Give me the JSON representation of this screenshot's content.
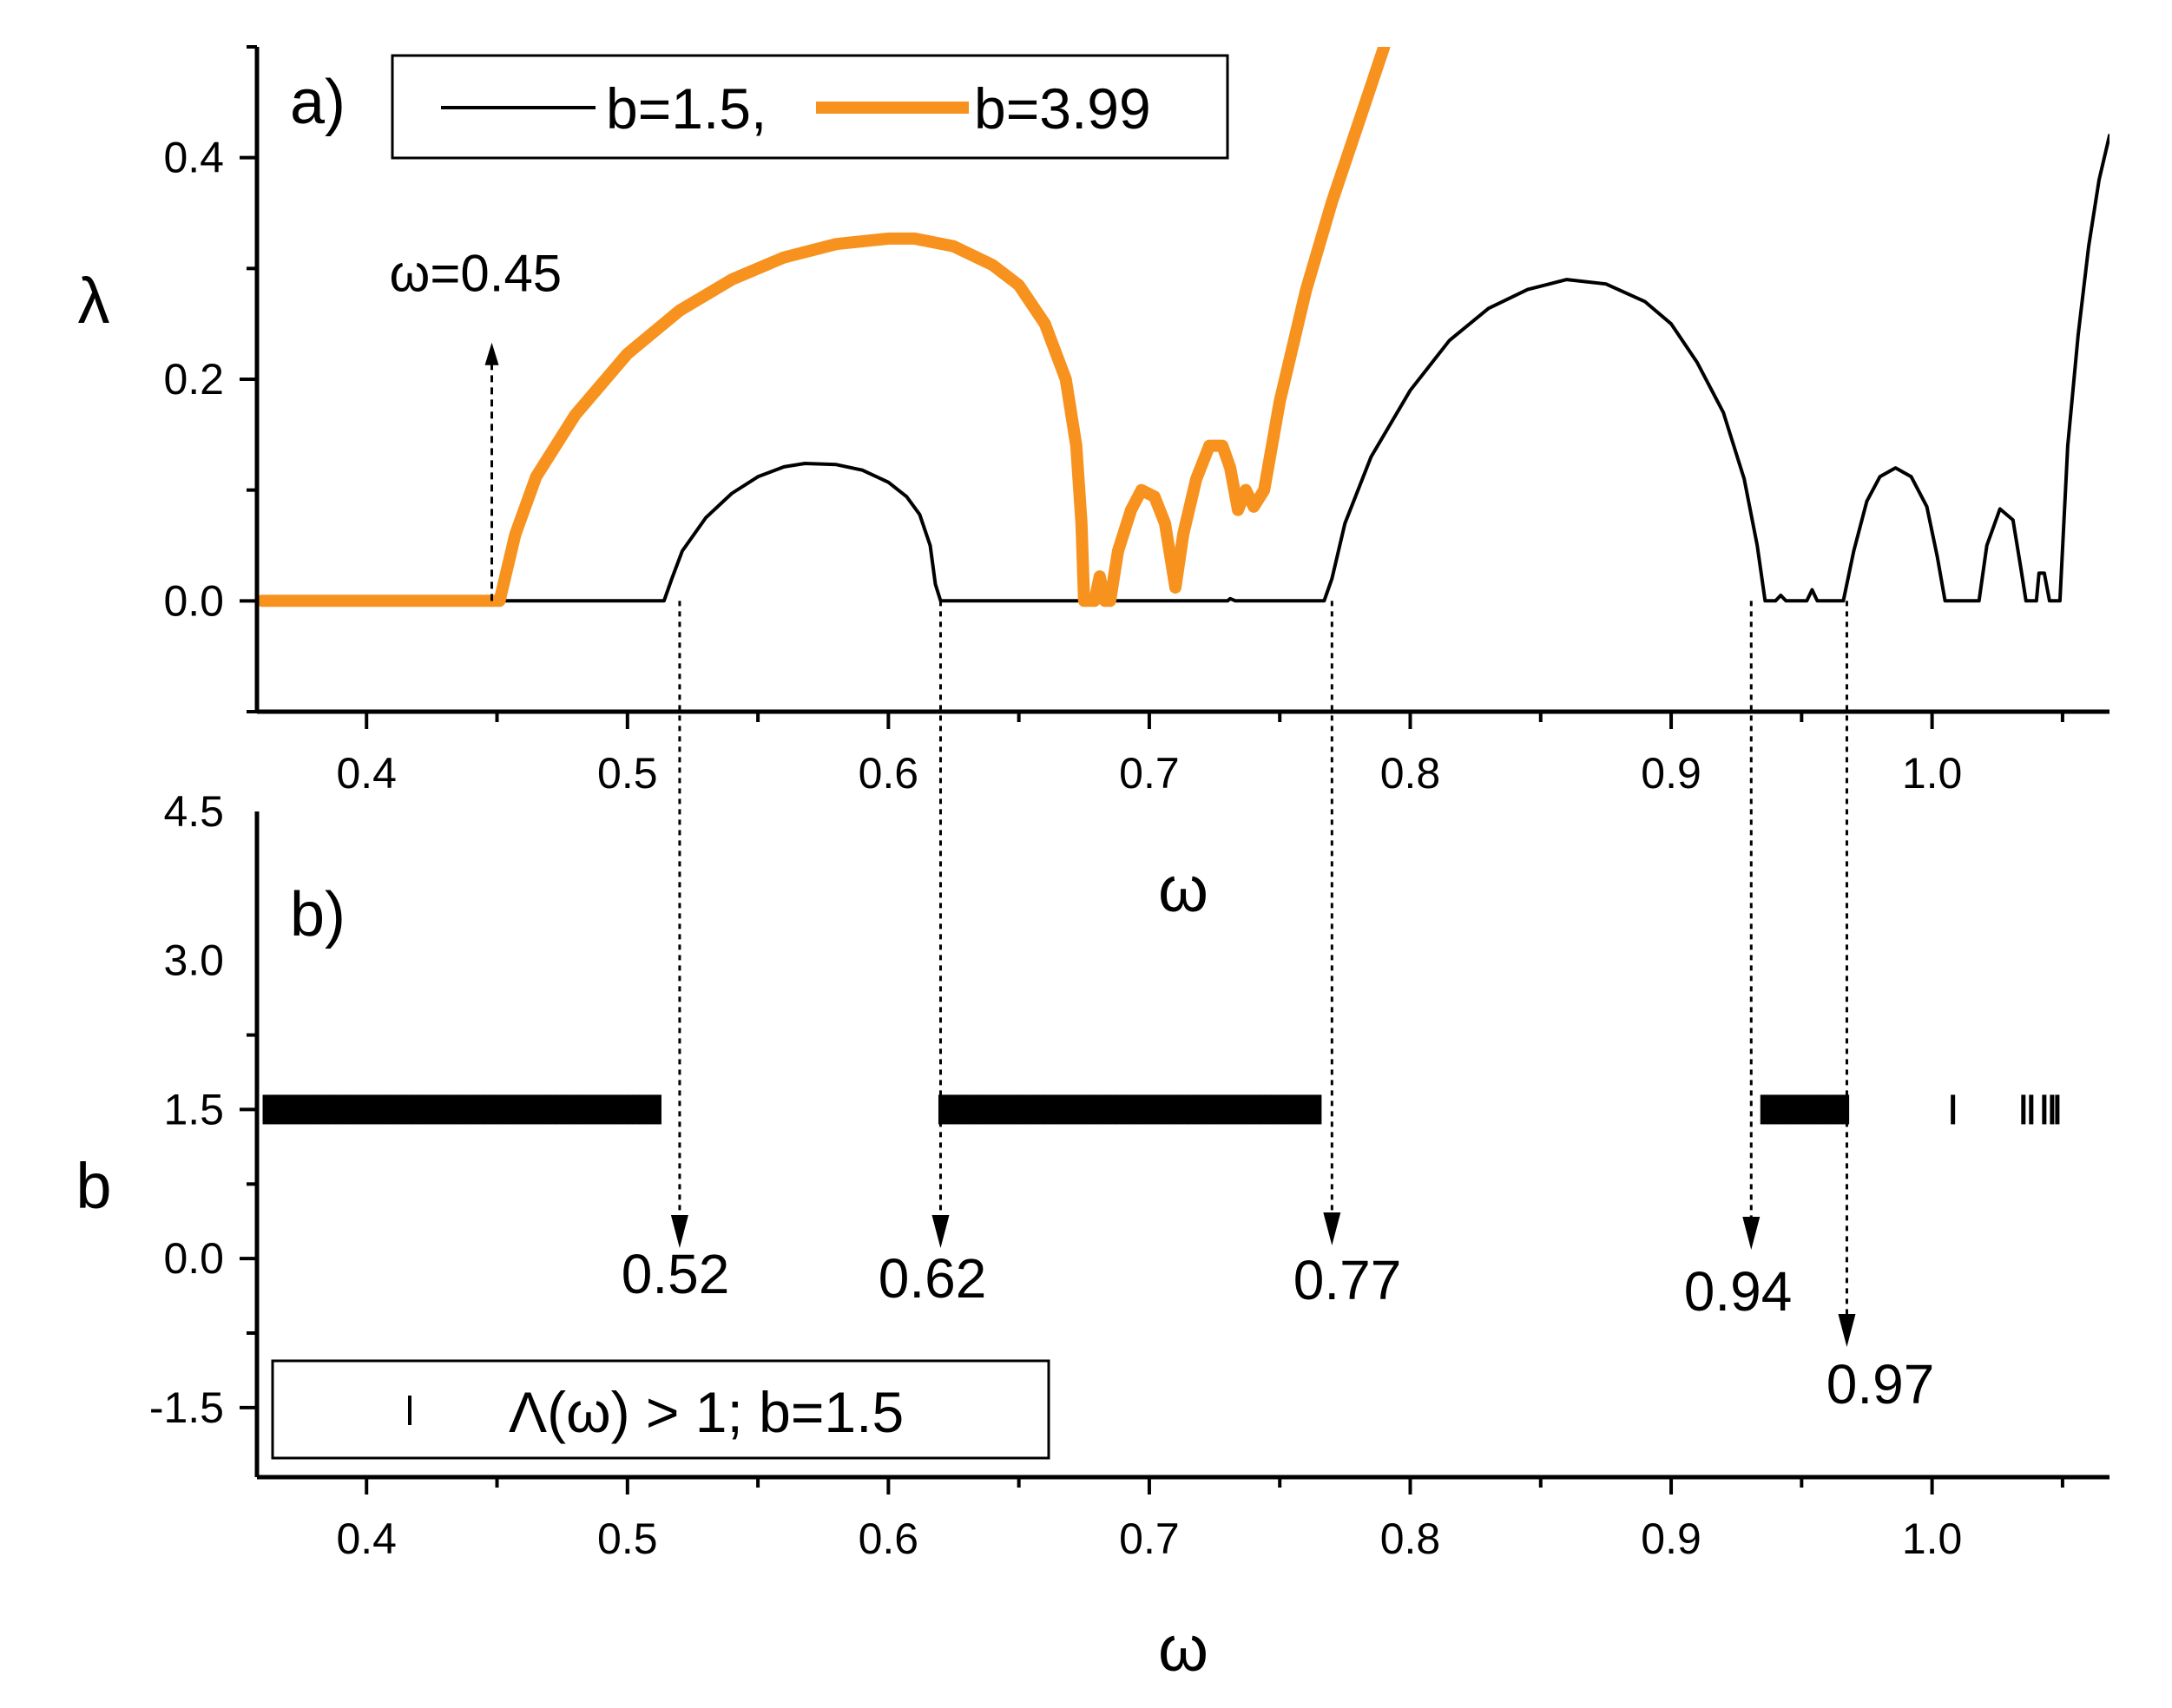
{
  "chart_data": [
    {
      "panel_label": "a)",
      "type": "line",
      "xlabel": "ω",
      "ylabel": "λ",
      "xlim": [
        0.358,
        1.068
      ],
      "ylim": [
        -0.1,
        0.5
      ],
      "xticks": [
        "0.4",
        "0.5",
        "0.6",
        "0.7",
        "0.8",
        "0.9",
        "1.0"
      ],
      "yticks": [
        "0.0",
        "0.2",
        "0.4"
      ],
      "legend_placement": "top-left",
      "series": [
        {
          "name": "b=1.5,",
          "color": "#000000",
          "points": [
            [
              0.36,
              0
            ],
            [
              0.514,
              0
            ],
            [
              0.517,
              0.02
            ],
            [
              0.521,
              0.045
            ],
            [
              0.53,
              0.075
            ],
            [
              0.54,
              0.097
            ],
            [
              0.55,
              0.112
            ],
            [
              0.56,
              0.121
            ],
            [
              0.568,
              0.124
            ],
            [
              0.58,
              0.123
            ],
            [
              0.59,
              0.118
            ],
            [
              0.6,
              0.107
            ],
            [
              0.607,
              0.094
            ],
            [
              0.612,
              0.078
            ],
            [
              0.616,
              0.05
            ],
            [
              0.618,
              0.015
            ],
            [
              0.62,
              0
            ],
            [
              0.73,
              0
            ],
            [
              0.731,
              0.002
            ],
            [
              0.733,
              0
            ],
            [
              0.767,
              0
            ],
            [
              0.77,
              0.02
            ],
            [
              0.775,
              0.07
            ],
            [
              0.785,
              0.13
            ],
            [
              0.8,
              0.19
            ],
            [
              0.815,
              0.235
            ],
            [
              0.83,
              0.264
            ],
            [
              0.845,
              0.281
            ],
            [
              0.86,
              0.29
            ],
            [
              0.875,
              0.286
            ],
            [
              0.89,
              0.27
            ],
            [
              0.9,
              0.25
            ],
            [
              0.91,
              0.215
            ],
            [
              0.92,
              0.17
            ],
            [
              0.928,
              0.11
            ],
            [
              0.933,
              0.05
            ],
            [
              0.936,
              0
            ],
            [
              0.94,
              0
            ],
            [
              0.942,
              0.005
            ],
            [
              0.944,
              0
            ],
            [
              0.952,
              0
            ],
            [
              0.954,
              0.01
            ],
            [
              0.956,
              0
            ],
            [
              0.966,
              0
            ],
            [
              0.97,
              0.045
            ],
            [
              0.975,
              0.09
            ],
            [
              0.98,
              0.112
            ],
            [
              0.986,
              0.12
            ],
            [
              0.992,
              0.112
            ],
            [
              0.998,
              0.085
            ],
            [
              1.002,
              0.04
            ],
            [
              1.005,
              0
            ],
            [
              1.018,
              0
            ],
            [
              1.021,
              0.05
            ],
            [
              1.026,
              0.083
            ],
            [
              1.031,
              0.073
            ],
            [
              1.034,
              0.03
            ],
            [
              1.036,
              0
            ],
            [
              1.04,
              0
            ],
            [
              1.041,
              0.025
            ],
            [
              1.043,
              0.025
            ],
            [
              1.045,
              0
            ],
            [
              1.049,
              0
            ],
            [
              1.052,
              0.14
            ],
            [
              1.056,
              0.24
            ],
            [
              1.06,
              0.32
            ],
            [
              1.064,
              0.38
            ],
            [
              1.068,
              0.42
            ]
          ]
        },
        {
          "name": "b=3.99",
          "color": "#f7921e",
          "points": [
            [
              0.36,
              0
            ],
            [
              0.45,
              0
            ],
            [
              0.451,
              0
            ],
            [
              0.453,
              0.02
            ],
            [
              0.457,
              0.06
            ],
            [
              0.465,
              0.112
            ],
            [
              0.48,
              0.168
            ],
            [
              0.5,
              0.223
            ],
            [
              0.52,
              0.262
            ],
            [
              0.54,
              0.29
            ],
            [
              0.56,
              0.31
            ],
            [
              0.58,
              0.322
            ],
            [
              0.6,
              0.327
            ],
            [
              0.61,
              0.327
            ],
            [
              0.625,
              0.32
            ],
            [
              0.64,
              0.303
            ],
            [
              0.65,
              0.285
            ],
            [
              0.66,
              0.25
            ],
            [
              0.668,
              0.2
            ],
            [
              0.672,
              0.14
            ],
            [
              0.674,
              0.07
            ],
            [
              0.675,
              0
            ],
            [
              0.679,
              0
            ],
            [
              0.681,
              0.022
            ],
            [
              0.683,
              0
            ],
            [
              0.685,
              0
            ],
            [
              0.688,
              0.045
            ],
            [
              0.693,
              0.082
            ],
            [
              0.697,
              0.1
            ],
            [
              0.702,
              0.094
            ],
            [
              0.706,
              0.07
            ],
            [
              0.71,
              0.012
            ],
            [
              0.713,
              0.06
            ],
            [
              0.718,
              0.11
            ],
            [
              0.723,
              0.14
            ],
            [
              0.728,
              0.14
            ],
            [
              0.731,
              0.12
            ],
            [
              0.734,
              0.082
            ],
            [
              0.737,
              0.1
            ],
            [
              0.74,
              0.085
            ],
            [
              0.744,
              0.1
            ],
            [
              0.75,
              0.18
            ],
            [
              0.76,
              0.28
            ],
            [
              0.77,
              0.36
            ],
            [
              0.78,
              0.43
            ],
            [
              0.79,
              0.5
            ]
          ]
        }
      ],
      "annotation": {
        "text": "ω=0.45",
        "x": 0.45,
        "arrow_from_y": 0.0,
        "arrow_to_y": 0.23
      }
    },
    {
      "panel_label": "b)",
      "type": "scatter",
      "xlabel": "ω",
      "ylabel": "b",
      "xlim": [
        0.358,
        1.068
      ],
      "ylim": [
        -2.2,
        4.5
      ],
      "xticks": [
        "0.4",
        "0.5",
        "0.6",
        "0.7",
        "0.8",
        "0.9",
        "1.0"
      ],
      "yticks": [
        "-1.5",
        "0.0",
        "1.5",
        "3.0",
        "4.5"
      ],
      "legend_placement": "bottom-left",
      "series": [
        {
          "name": "Λ(ω) > 1; b=1.5",
          "marker": "vertical-dash",
          "y": 1.5,
          "ranges": [
            [
              0.361,
              0.513
            ],
            [
              0.62,
              0.766
            ],
            [
              0.935,
              0.968
            ]
          ],
          "isolated_x": [
            1.008,
            1.035,
            1.038,
            1.043,
            1.046,
            1.048
          ]
        }
      ],
      "callouts": [
        {
          "x": 0.52,
          "label": "0.52"
        },
        {
          "x": 0.62,
          "label": "0.62"
        },
        {
          "x": 0.77,
          "label": "0.77"
        },
        {
          "x": 0.94,
          "label": "0.94"
        },
        {
          "x": 0.97,
          "label": "0.97"
        }
      ]
    }
  ]
}
